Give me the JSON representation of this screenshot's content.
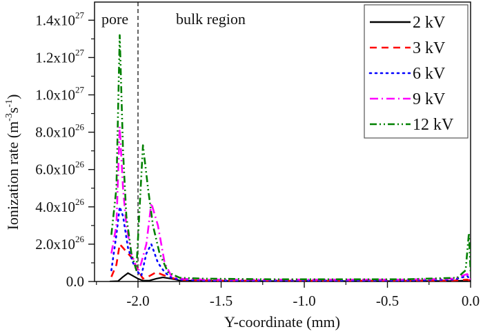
{
  "chart_data": {
    "type": "line",
    "title": "",
    "xlabel": "Y-coordinate (mm)",
    "ylabel_main": "Ionization rate (m",
    "ylabel_sup1": "-3",
    "ylabel_mid": "s",
    "ylabel_sup2": "-1",
    "ylabel_end": ")",
    "xlim": [
      -2.25,
      0.0
    ],
    "ylim_units_1e26": [
      0,
      15
    ],
    "x_ticks": [
      {
        "value": -2.0,
        "label": "-2.0"
      },
      {
        "value": -1.5,
        "label": "-1.5"
      },
      {
        "value": -1.0,
        "label": "-1.0"
      },
      {
        "value": -0.5,
        "label": "-0.5"
      },
      {
        "value": 0.0,
        "label": "0.0"
      }
    ],
    "y_ticks": [
      {
        "value": 0,
        "mant": "0.0",
        "exp": ""
      },
      {
        "value": 2,
        "mant": "2.0x10",
        "exp": "26"
      },
      {
        "value": 4,
        "mant": "4.0x10",
        "exp": "26"
      },
      {
        "value": 6,
        "mant": "6.0x10",
        "exp": "26"
      },
      {
        "value": 8,
        "mant": "8.0x10",
        "exp": "26"
      },
      {
        "value": 10,
        "mant": "1.0x10",
        "exp": "27"
      },
      {
        "value": 12,
        "mant": "1.2x10",
        "exp": "27"
      },
      {
        "value": 14,
        "mant": "1.4x10",
        "exp": "27"
      }
    ],
    "y_unit_note": "y values are in units of 1e26 m^-3 s^-1",
    "legend_position": "top-right",
    "grid": false,
    "annotations": [
      {
        "text": "pore",
        "x": -2.16
      },
      {
        "text": "bulk region",
        "x": -1.8
      }
    ],
    "vline": -2.0,
    "series": [
      {
        "name": "2 kV",
        "color": "#000000",
        "dash": "solid",
        "x": [
          -2.17,
          -2.12,
          -2.09,
          -2.06,
          -2.03,
          -2.0,
          -1.97,
          -1.93,
          -1.89,
          -1.85,
          -1.8,
          -1.75,
          -1.6,
          -1.2,
          -0.8,
          -0.4,
          -0.1,
          -0.02,
          0.0
        ],
        "y": [
          0.0,
          0.02,
          0.25,
          0.45,
          0.3,
          0.15,
          0.04,
          0.05,
          0.15,
          0.22,
          0.15,
          0.06,
          0.03,
          0.02,
          0.02,
          0.02,
          0.03,
          0.05,
          0.02
        ]
      },
      {
        "name": "3 kV",
        "color": "#ff0000",
        "dash": "dashed",
        "x": [
          -2.16,
          -2.13,
          -2.11,
          -2.09,
          -2.06,
          -2.03,
          -2.0,
          -1.97,
          -1.93,
          -1.89,
          -1.85,
          -1.8,
          -1.75,
          -1.6,
          -1.2,
          -0.8,
          -0.4,
          -0.1,
          -0.02,
          0.0
        ],
        "y": [
          0.25,
          0.9,
          2.0,
          1.8,
          1.5,
          1.2,
          0.6,
          0.15,
          0.3,
          0.5,
          0.35,
          0.2,
          0.08,
          0.05,
          0.04,
          0.04,
          0.04,
          0.05,
          0.1,
          0.03
        ]
      },
      {
        "name": "6 kV",
        "color": "#0000ff",
        "dash": "dotted",
        "x": [
          -2.16,
          -2.13,
          -2.11,
          -2.09,
          -2.06,
          -2.03,
          -2.0,
          -1.98,
          -1.95,
          -1.92,
          -1.88,
          -1.84,
          -1.8,
          -1.75,
          -1.6,
          -1.2,
          -0.8,
          -0.4,
          -0.1,
          -0.02,
          0.0
        ],
        "y": [
          0.6,
          2.5,
          4.0,
          3.5,
          1.8,
          1.0,
          0.5,
          0.3,
          1.5,
          2.0,
          1.0,
          0.5,
          0.2,
          0.1,
          0.05,
          0.05,
          0.05,
          0.05,
          0.1,
          0.3,
          0.05
        ]
      },
      {
        "name": "9 kV",
        "color": "#ff00ff",
        "dash": "dashdot",
        "x": [
          -2.16,
          -2.13,
          -2.11,
          -2.09,
          -2.07,
          -2.04,
          -2.0,
          -1.98,
          -1.95,
          -1.92,
          -1.88,
          -1.84,
          -1.8,
          -1.75,
          -1.6,
          -1.2,
          -0.8,
          -0.4,
          -0.1,
          -0.02,
          0.0
        ],
        "y": [
          1.5,
          3.0,
          8.3,
          5.0,
          3.0,
          1.5,
          0.5,
          1.0,
          2.0,
          4.2,
          3.0,
          1.0,
          0.3,
          0.15,
          0.1,
          0.1,
          0.1,
          0.1,
          0.15,
          0.4,
          0.1
        ]
      },
      {
        "name": "12 kV",
        "color": "#008000",
        "dash": "dashdotdot",
        "x": [
          -2.16,
          -2.13,
          -2.11,
          -2.09,
          -2.07,
          -2.04,
          -2.01,
          -1.99,
          -1.97,
          -1.94,
          -1.91,
          -1.87,
          -1.82,
          -1.75,
          -1.6,
          -1.2,
          -0.8,
          -0.4,
          -0.08,
          -0.03,
          -0.01,
          0.0
        ],
        "y": [
          2.5,
          5.0,
          13.2,
          7.0,
          3.5,
          1.5,
          0.6,
          4.0,
          7.3,
          5.0,
          3.0,
          1.5,
          0.5,
          0.2,
          0.15,
          0.12,
          0.12,
          0.12,
          0.2,
          0.6,
          2.6,
          0.5
        ]
      }
    ]
  }
}
